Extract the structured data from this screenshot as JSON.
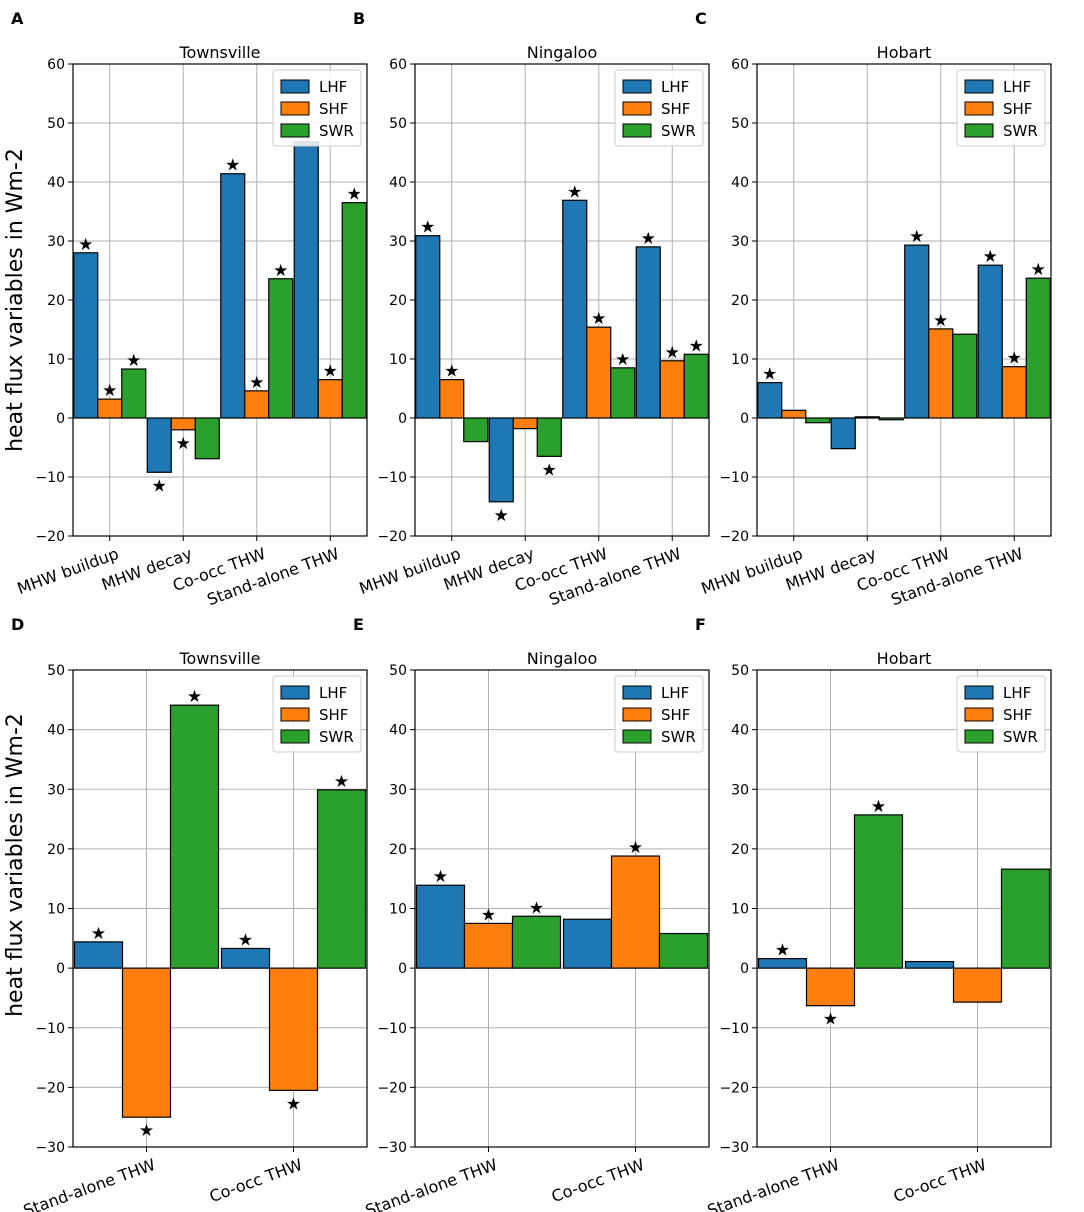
{
  "figure": {
    "ylabel": "heat flux variables in Wm-2",
    "colors": {
      "LHF": "#1f77b4",
      "SHF": "#ff7f0e",
      "SWR": "#2ca02c"
    },
    "star_glyph": "★"
  },
  "chart_data": [
    {
      "panel": "A",
      "title": "Townsville",
      "type": "bar",
      "categories": [
        "MHW buildup",
        "MHW decay",
        "Co-occ THW",
        "Stand-alone THW"
      ],
      "ylim": [
        -20,
        60
      ],
      "yticks": [
        -20,
        -10,
        0,
        10,
        20,
        30,
        40,
        50,
        60
      ],
      "legend": "top-right",
      "series": [
        {
          "name": "LHF",
          "values": [
            28,
            -9.2,
            41.4,
            46.8
          ],
          "star": [
            true,
            true,
            true,
            true
          ]
        },
        {
          "name": "SHF",
          "values": [
            3.2,
            -2,
            4.6,
            6.5
          ],
          "star": [
            true,
            true,
            true,
            true
          ]
        },
        {
          "name": "SWR",
          "values": [
            8.3,
            -6.9,
            23.6,
            36.5
          ],
          "star": [
            true,
            false,
            true,
            true
          ]
        }
      ]
    },
    {
      "panel": "B",
      "title": "Ningaloo",
      "type": "bar",
      "categories": [
        "MHW buildup",
        "MHW decay",
        "Co-occ THW",
        "Stand-alone THW"
      ],
      "ylim": [
        -20,
        60
      ],
      "yticks": [
        -20,
        -10,
        0,
        10,
        20,
        30,
        40,
        50,
        60
      ],
      "legend": "top-right",
      "series": [
        {
          "name": "LHF",
          "values": [
            30.9,
            -14.2,
            36.9,
            29
          ],
          "star": [
            true,
            true,
            true,
            true
          ]
        },
        {
          "name": "SHF",
          "values": [
            6.5,
            -1.8,
            15.4,
            9.7
          ],
          "star": [
            true,
            false,
            true,
            true
          ]
        },
        {
          "name": "SWR",
          "values": [
            -4,
            -6.5,
            8.5,
            10.8
          ],
          "star": [
            false,
            true,
            true,
            true
          ]
        }
      ]
    },
    {
      "panel": "C",
      "title": "Hobart",
      "type": "bar",
      "categories": [
        "MHW buildup",
        "MHW decay",
        "Co-occ THW",
        "Stand-alone THW"
      ],
      "ylim": [
        -20,
        60
      ],
      "yticks": [
        -20,
        -10,
        0,
        10,
        20,
        30,
        40,
        50,
        60
      ],
      "legend": "top-right",
      "series": [
        {
          "name": "LHF",
          "values": [
            6,
            -5.2,
            29.3,
            25.9
          ],
          "star": [
            true,
            false,
            true,
            true
          ]
        },
        {
          "name": "SHF",
          "values": [
            1.3,
            0.2,
            15.1,
            8.7
          ],
          "star": [
            false,
            false,
            true,
            true
          ]
        },
        {
          "name": "SWR",
          "values": [
            -0.8,
            -0.3,
            14.2,
            23.7
          ],
          "star": [
            false,
            false,
            false,
            true
          ]
        }
      ]
    },
    {
      "panel": "D",
      "title": "Townsville",
      "type": "bar",
      "categories": [
        "Stand-alone THW",
        "Co-occ THW"
      ],
      "ylim": [
        -30,
        50
      ],
      "yticks": [
        -30,
        -20,
        -10,
        0,
        10,
        20,
        30,
        40,
        50
      ],
      "legend": "top-right",
      "series": [
        {
          "name": "LHF",
          "values": [
            4.4,
            3.3
          ],
          "star": [
            true,
            true
          ]
        },
        {
          "name": "SHF",
          "values": [
            -25,
            -20.5
          ],
          "star": [
            true,
            true
          ]
        },
        {
          "name": "SWR",
          "values": [
            44.1,
            29.9
          ],
          "star": [
            true,
            true
          ]
        }
      ]
    },
    {
      "panel": "E",
      "title": "Ningaloo",
      "type": "bar",
      "categories": [
        "Stand-alone THW",
        "Co-occ THW"
      ],
      "ylim": [
        -30,
        50
      ],
      "yticks": [
        -30,
        -20,
        -10,
        0,
        10,
        20,
        30,
        40,
        50
      ],
      "legend": "top-right",
      "series": [
        {
          "name": "LHF",
          "values": [
            13.9,
            8.2
          ],
          "star": [
            true,
            false
          ]
        },
        {
          "name": "SHF",
          "values": [
            7.5,
            18.8
          ],
          "star": [
            true,
            true
          ]
        },
        {
          "name": "SWR",
          "values": [
            8.7,
            5.8
          ],
          "star": [
            true,
            false
          ]
        }
      ]
    },
    {
      "panel": "F",
      "title": "Hobart",
      "type": "bar",
      "categories": [
        "Stand-alone THW",
        "Co-occ THW"
      ],
      "ylim": [
        -30,
        50
      ],
      "yticks": [
        -30,
        -20,
        -10,
        0,
        10,
        20,
        30,
        40,
        50
      ],
      "legend": "top-right",
      "series": [
        {
          "name": "LHF",
          "values": [
            1.6,
            1.1
          ],
          "star": [
            true,
            false
          ]
        },
        {
          "name": "SHF",
          "values": [
            -6.3,
            -5.7
          ],
          "star": [
            true,
            false
          ]
        },
        {
          "name": "SWR",
          "values": [
            25.7,
            16.6
          ],
          "star": [
            true,
            false
          ]
        }
      ]
    }
  ]
}
